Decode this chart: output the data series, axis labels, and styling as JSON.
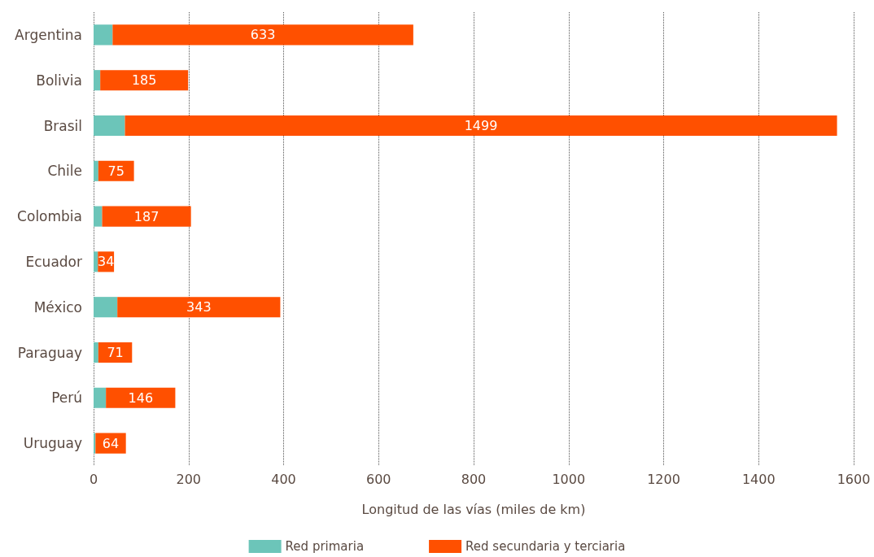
{
  "chart_data": {
    "type": "bar",
    "orientation": "horizontal",
    "stacked": true,
    "xlabel": "Longitud de las vías (miles de km)",
    "categories": [
      "Argentina",
      "Bolivia",
      "Brasil",
      "Chile",
      "Colombia",
      "Ecuador",
      "México",
      "Paraguay",
      "Perú",
      "Uruguay"
    ],
    "series": [
      {
        "name": "Red primaria",
        "color": "#6cc5b9",
        "values": [
          40,
          14,
          66,
          10,
          18,
          9,
          50,
          10,
          26,
          4
        ]
      },
      {
        "name": "Red secundaria y terciaria",
        "color": "#ff5000",
        "values": [
          633,
          185,
          1499,
          75,
          187,
          34,
          343,
          71,
          146,
          64
        ],
        "value_labels": [
          "633",
          "185",
          "1499",
          "75",
          "187",
          "34",
          "343",
          "71",
          "146",
          "64"
        ]
      }
    ],
    "xlim": [
      0,
      1600
    ],
    "xticks": [
      0,
      200,
      400,
      600,
      800,
      1000,
      1200,
      1400,
      1600
    ],
    "grid": "x",
    "legend": "bottom"
  }
}
